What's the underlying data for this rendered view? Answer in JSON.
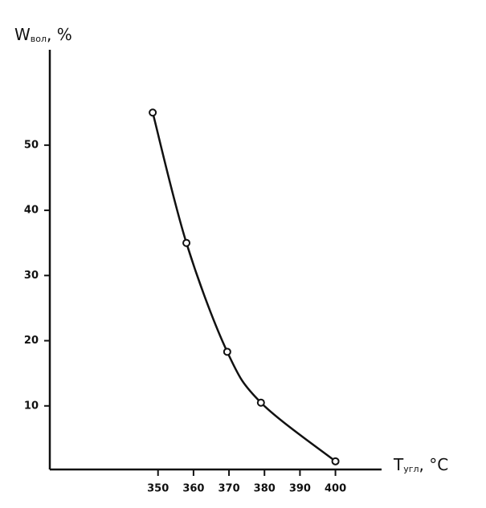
{
  "chart_data": {
    "type": "scatter",
    "y_label": {
      "main": "W",
      "sub": "вол",
      "unit": ", %"
    },
    "x_label": {
      "main": "T",
      "sub": "угл",
      "unit": ", °C"
    },
    "x": [
      348.5,
      358,
      369.5,
      379,
      400
    ],
    "series": [
      {
        "values": [
          55,
          35,
          18.3,
          10.5,
          1.5
        ],
        "color": "#111111"
      }
    ],
    "xlim": [
      319.5,
      413
    ],
    "ylim": [
      0,
      65
    ],
    "xticks": [
      350,
      360,
      370,
      380,
      390,
      400
    ],
    "yticks": [
      10,
      20,
      30,
      40,
      50
    ],
    "smooth_line": true
  }
}
